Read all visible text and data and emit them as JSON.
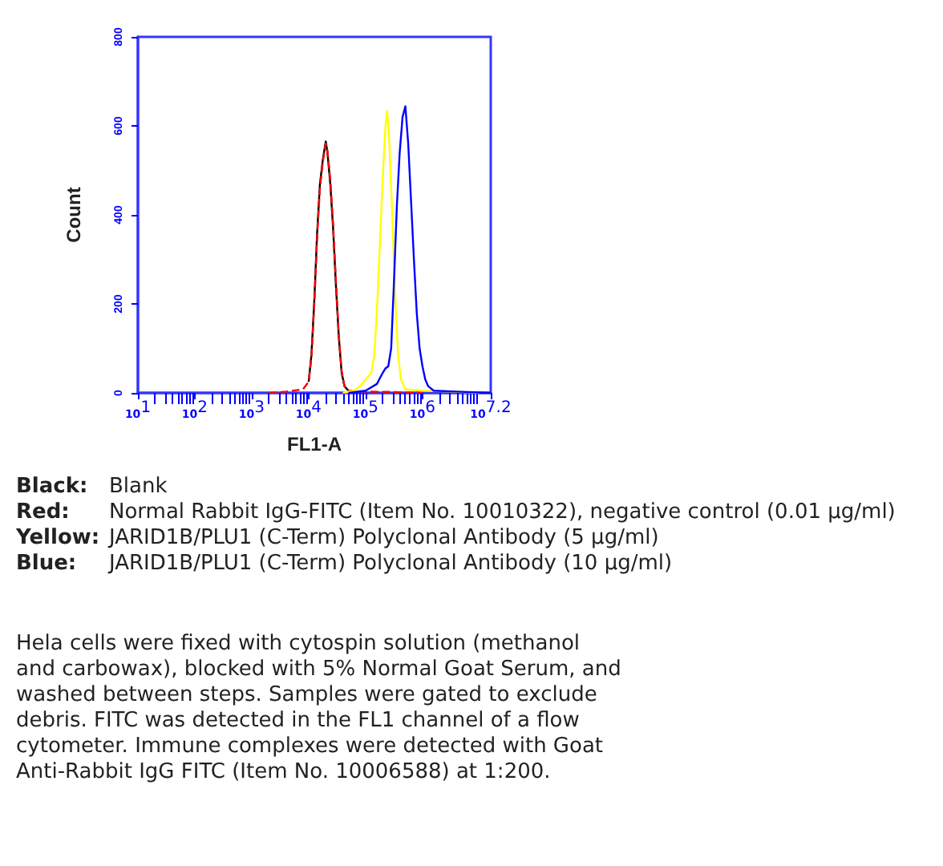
{
  "chart_data": {
    "type": "line",
    "xlabel": "FL1-A",
    "ylabel": "Count",
    "log": "x",
    "grid": false,
    "marker": "none",
    "line_style": "solid",
    "xlim": [
      10,
      15848932
    ],
    "ylim": [
      0,
      800
    ],
    "xticks": [
      {
        "value": 10,
        "label": "10$^{1}$"
      },
      {
        "value": 100,
        "label": "10$^{2}$"
      },
      {
        "value": 1000,
        "label": "10$^{3}$"
      },
      {
        "value": 10000,
        "label": "10$^{4}$"
      },
      {
        "value": 100000,
        "label": "10$^{5}$"
      },
      {
        "value": 1000000,
        "label": "10$^{6}$"
      },
      {
        "value": 15848932,
        "label": "10$^{7.2}$"
      }
    ],
    "yticks": [
      0,
      200,
      400,
      600,
      800
    ],
    "series": [
      {
        "color": "#000000",
        "x": [
          10000,
          11200,
          12600,
          14100,
          15800,
          17800,
          20000,
          21400,
          24000,
          26900,
          30200,
          33900,
          38000,
          42700,
          50100
        ],
        "values": [
          25,
          85,
          210,
          360,
          470,
          525,
          565,
          540,
          470,
          370,
          240,
          125,
          45,
          15,
          5
        ]
      },
      {
        "color": "#ff0000",
        "line_style": "dashed",
        "x": [
          2000,
          3980,
          7940,
          10000,
          11200,
          12600,
          14100,
          15800,
          17800,
          20000,
          21400,
          24000,
          26900,
          30200,
          33900,
          38000,
          42700,
          50100,
          100000,
          316000,
          1000000
        ],
        "values": [
          0,
          3,
          8,
          25,
          80,
          200,
          350,
          460,
          520,
          560,
          545,
          480,
          380,
          250,
          130,
          50,
          15,
          5,
          3,
          2,
          0
        ]
      },
      {
        "color": "#ffff00",
        "x": [
          39800,
          63100,
          79400,
          100000,
          126000,
          141000,
          158000,
          178000,
          200000,
          224000,
          240000,
          263000,
          295000,
          331000,
          372000,
          417000,
          501000,
          1000000,
          3160000,
          10000000
        ],
        "values": [
          0,
          5,
          15,
          30,
          45,
          80,
          180,
          330,
          480,
          600,
          634,
          560,
          400,
          220,
          90,
          30,
          8,
          5,
          3,
          0
        ]
      },
      {
        "color": "#0000ff",
        "x": [
          50100,
          100000,
          158000,
          200000,
          224000,
          251000,
          282000,
          316000,
          355000,
          398000,
          447000,
          501000,
          562000,
          631000,
          708000,
          794000,
          891000,
          1000000,
          1120000,
          1260000,
          1580000,
          3980000,
          15800000
        ],
        "values": [
          0,
          5,
          20,
          45,
          55,
          60,
          100,
          250,
          420,
          540,
          620,
          644,
          560,
          430,
          300,
          180,
          100,
          60,
          30,
          15,
          5,
          3,
          0
        ]
      }
    ],
    "annotations": [
      "Black: Blank",
      "Red: Normal Rabbit IgG-FITC (Item No. 10010322), negative control (0.01 µg/ml)",
      "Yellow: JARID1B/PLU1 (C-Term) Polyclonal Antibody (5 µg/ml)",
      "Blue: JARID1B/PLU1 (C-Term) Polyclonal Antibody (10 µg/ml)",
      "Hela cells were fixed with cytospin solution (methanol and carbowax), blocked with 5% Normal Goat Serum, and washed between steps. Samples were gated to exclude debris. FITC was detected in the FL1 channel of a flow cytometer. Immune complexes were detected with Goat Anti-Rabbit IgG FITC (Item No. 10006588) at 1:200."
    ]
  }
}
